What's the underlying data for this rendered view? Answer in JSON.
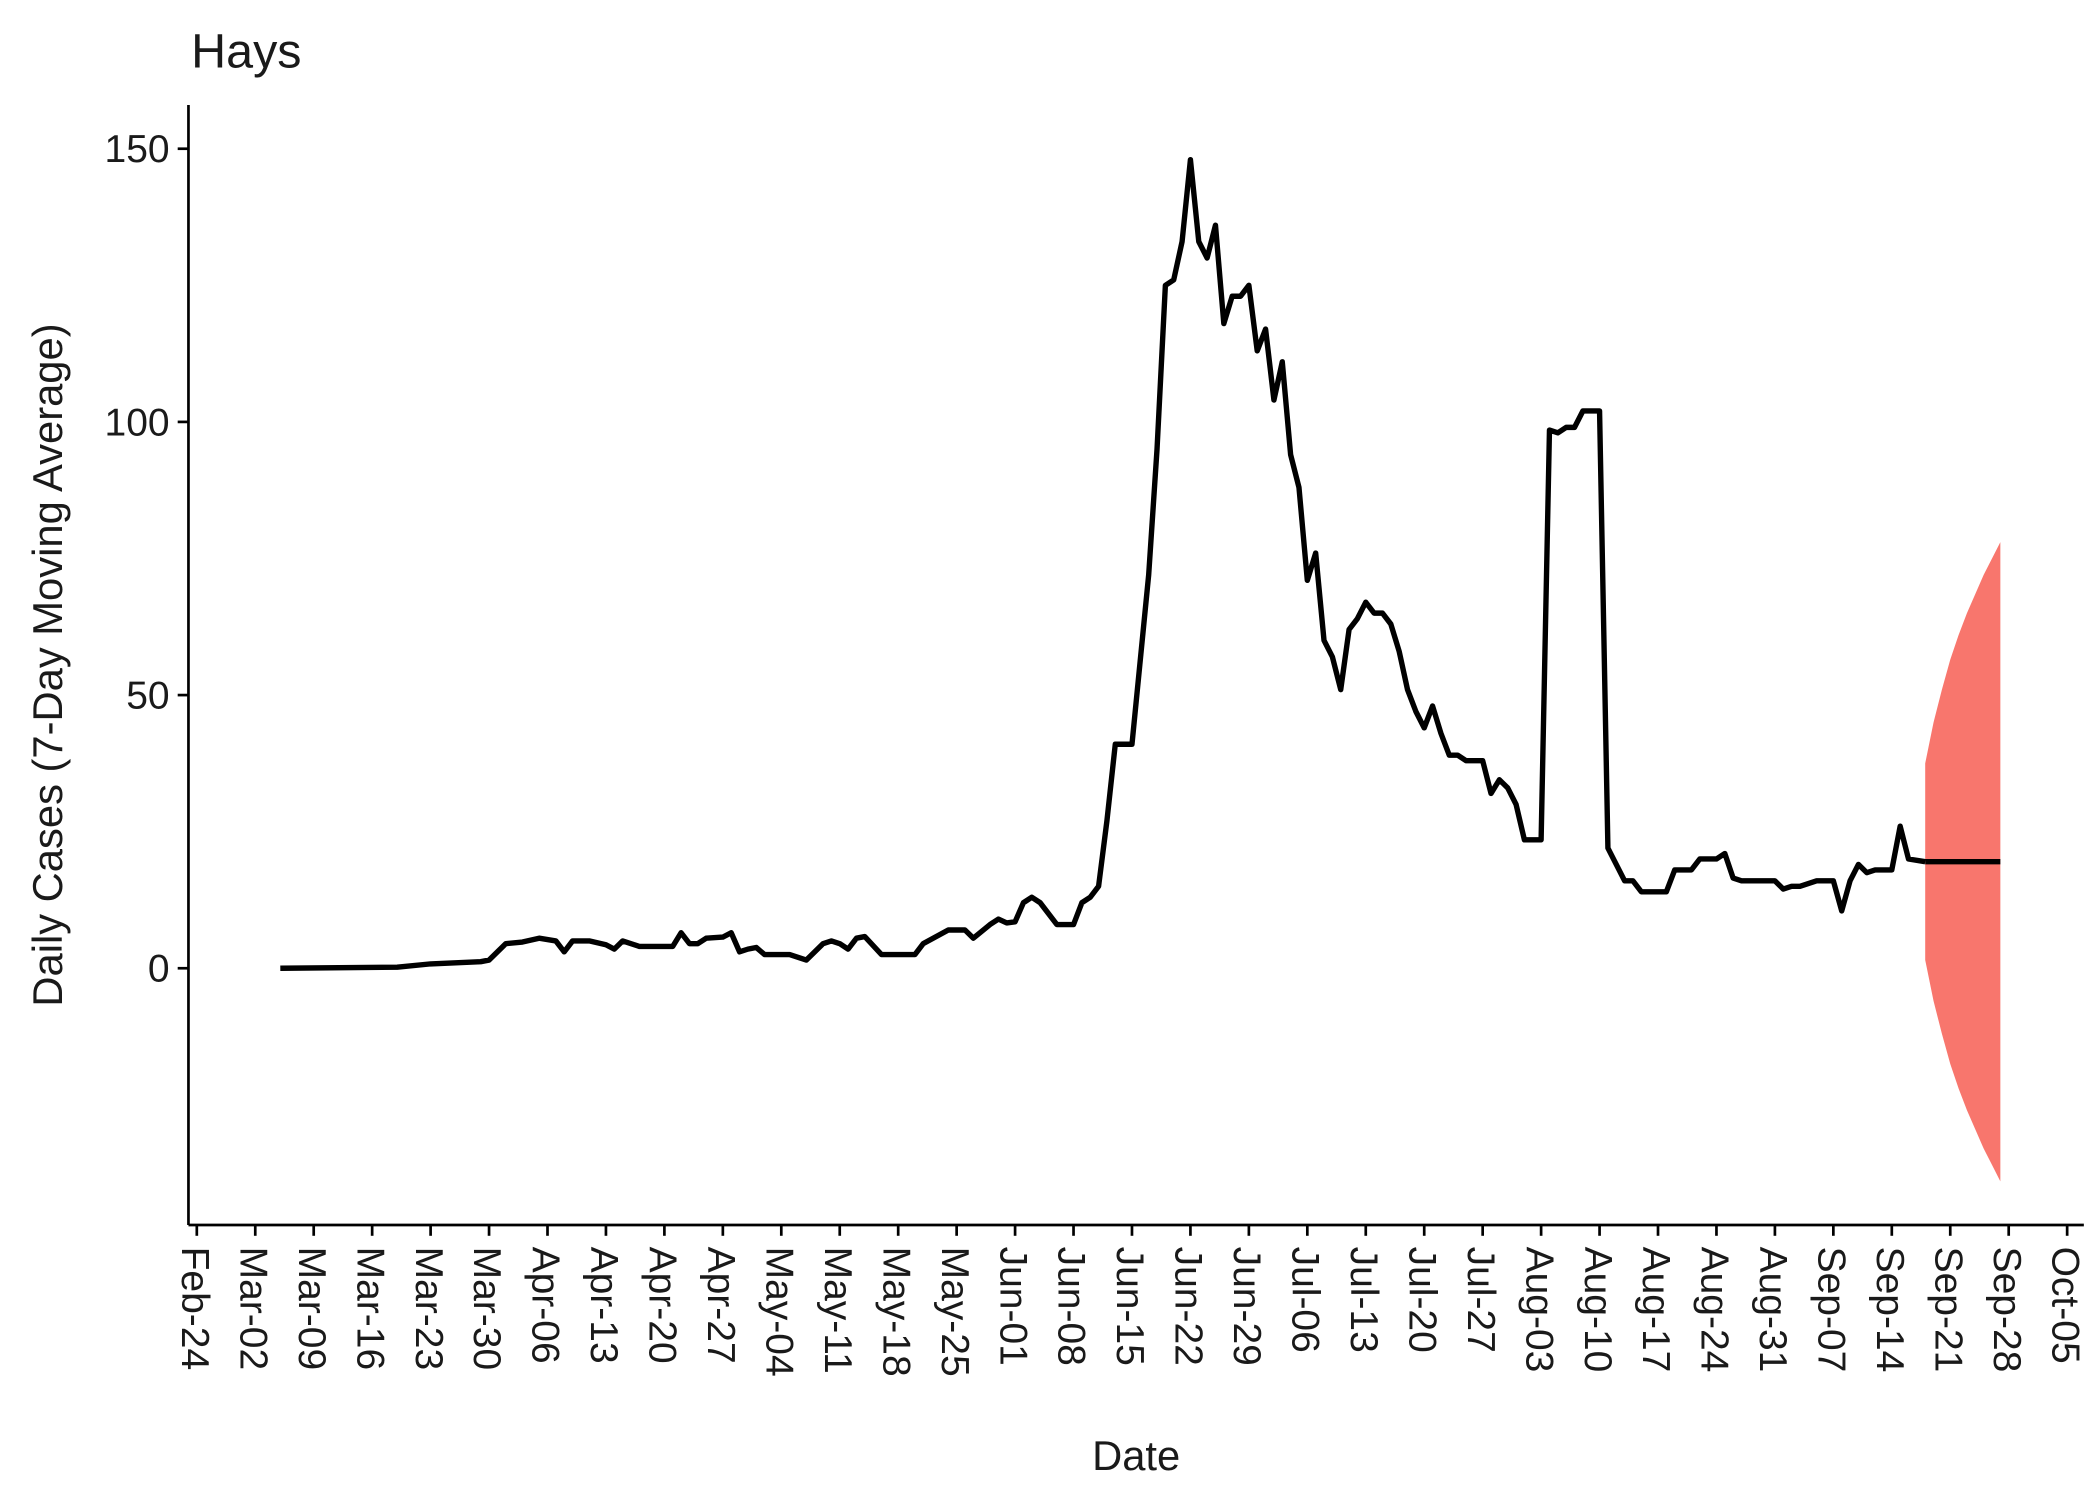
{
  "chart_data": {
    "type": "line",
    "title": "Hays",
    "x_label": "Date",
    "y_label": "Daily Cases (7-Day Moving Average)",
    "color": "#000000",
    "x": [
      "Mar-05",
      "Mar-19",
      "Mar-23",
      "Mar-29",
      "Mar-30",
      "Apr-01",
      "Apr-03",
      "Apr-05",
      "Apr-07",
      "Apr-08",
      "Apr-09",
      "Apr-11",
      "Apr-13",
      "Apr-14",
      "Apr-15",
      "Apr-17",
      "Apr-21",
      "Apr-22",
      "Apr-23",
      "Apr-24",
      "Apr-25",
      "Apr-27",
      "Apr-28",
      "Apr-29",
      "Apr-30",
      "May-01",
      "May-02",
      "May-05",
      "May-07",
      "May-09",
      "May-10",
      "May-11",
      "May-12",
      "May-13",
      "May-14",
      "May-16",
      "May-20",
      "May-21",
      "May-24",
      "May-26",
      "May-27",
      "May-29",
      "May-30",
      "May-31",
      "Jun-01",
      "Jun-02",
      "Jun-03",
      "Jun-04",
      "Jun-06",
      "Jun-08",
      "Jun-09",
      "Jun-10",
      "Jun-11",
      "Jun-12",
      "Jun-13",
      "Jun-15",
      "Jun-17",
      "Jun-18",
      "Jun-19",
      "Jun-20",
      "Jun-21",
      "Jun-22",
      "Jun-23",
      "Jun-24",
      "Jun-25",
      "Jun-26",
      "Jun-27",
      "Jun-28",
      "Jun-29",
      "Jun-30",
      "Jul-01",
      "Jul-02",
      "Jul-03",
      "Jul-04",
      "Jul-05",
      "Jul-06",
      "Jul-07",
      "Jul-08",
      "Jul-09",
      "Jul-10",
      "Jul-11",
      "Jul-12",
      "Jul-13",
      "Jul-14",
      "Jul-15",
      "Jul-16",
      "Jul-17",
      "Jul-18",
      "Jul-19",
      "Jul-20",
      "Jul-21",
      "Jul-22",
      "Jul-23",
      "Jul-24",
      "Jul-25",
      "Jul-27",
      "Jul-28",
      "Jul-29",
      "Jul-30",
      "Jul-31",
      "Aug-01",
      "Aug-03",
      "Aug-04",
      "Aug-05",
      "Aug-06",
      "Aug-07",
      "Aug-08",
      "Aug-10",
      "Aug-11",
      "Aug-12",
      "Aug-13",
      "Aug-14",
      "Aug-15",
      "Aug-18",
      "Aug-19",
      "Aug-21",
      "Aug-22",
      "Aug-24",
      "Aug-25",
      "Aug-26",
      "Aug-27",
      "Aug-29",
      "Aug-31",
      "Sep-01",
      "Sep-02",
      "Sep-03",
      "Sep-04",
      "Sep-05",
      "Sep-07",
      "Sep-08",
      "Sep-09",
      "Sep-10",
      "Sep-11",
      "Sep-12",
      "Sep-14",
      "Sep-15",
      "Sep-16",
      "Sep-18"
    ],
    "values": [
      0,
      0.2,
      0.8,
      1.2,
      1.5,
      4.5,
      4.8,
      5.5,
      5,
      3,
      5,
      5,
      4.3,
      3.5,
      5,
      4,
      4,
      6.5,
      4.5,
      4.5,
      5.5,
      5.7,
      6.5,
      3,
      3.5,
      3.8,
      2.5,
      2.5,
      1.5,
      4.5,
      5,
      4.5,
      3.5,
      5.5,
      5.8,
      2.5,
      2.5,
      4.5,
      7,
      7,
      5.5,
      8,
      9,
      8.3,
      8.5,
      12,
      13,
      12,
      8,
      8,
      12,
      13,
      15,
      27,
      41,
      41,
      72,
      95,
      125,
      126,
      133,
      148,
      133,
      130,
      136,
      118,
      123,
      123,
      125,
      113,
      117,
      104,
      111,
      94,
      88,
      71,
      76,
      60,
      57,
      51,
      62,
      64,
      67,
      65,
      65,
      63,
      58,
      51,
      47,
      44,
      48,
      43,
      39,
      39,
      38,
      38,
      32,
      34.5,
      33,
      30,
      23.5,
      23.5,
      98.5,
      98,
      99,
      99,
      102,
      102,
      22,
      19,
      16,
      16,
      14,
      14,
      18,
      18,
      20,
      20,
      21,
      16.5,
      16,
      16,
      16,
      14.5,
      15,
      15,
      15.5,
      16,
      16,
      10.5,
      16,
      19,
      17.5,
      18,
      18,
      26,
      20,
      19.5
    ],
    "forecast": {
      "color": "#f8766d",
      "x": [
        "Sep-18",
        "Sep-19",
        "Sep-20",
        "Sep-21",
        "Sep-22",
        "Sep-23",
        "Sep-24",
        "Sep-25",
        "Sep-26",
        "Sep-27"
      ],
      "values": [
        19.5,
        19.5,
        19.5,
        19.5,
        19.5,
        19.5,
        19.5,
        19.5,
        19.5,
        19.5
      ],
      "upper": [
        37.5,
        45,
        51,
        56.5,
        61,
        65,
        68.5,
        72,
        75,
        78
      ],
      "lower": [
        1.5,
        -6,
        -12,
        -17.5,
        -22,
        -26,
        -29.5,
        -33,
        -36,
        -39
      ]
    },
    "xlim": [
      "Feb-23",
      "Oct-07"
    ],
    "xticks": [
      "Feb-24",
      "Mar-02",
      "Mar-09",
      "Mar-16",
      "Mar-23",
      "Mar-30",
      "Apr-06",
      "Apr-13",
      "Apr-20",
      "Apr-27",
      "May-04",
      "May-11",
      "May-18",
      "May-25",
      "Jun-01",
      "Jun-08",
      "Jun-15",
      "Jun-22",
      "Jun-29",
      "Jul-06",
      "Jul-13",
      "Jul-20",
      "Jul-27",
      "Aug-03",
      "Aug-10",
      "Aug-17",
      "Aug-24",
      "Aug-31",
      "Sep-07",
      "Sep-14",
      "Sep-21",
      "Sep-28",
      "Oct-05"
    ],
    "ylim": [
      -47,
      158
    ],
    "yticks": [
      0,
      50,
      100,
      150
    ],
    "grid": false
  }
}
